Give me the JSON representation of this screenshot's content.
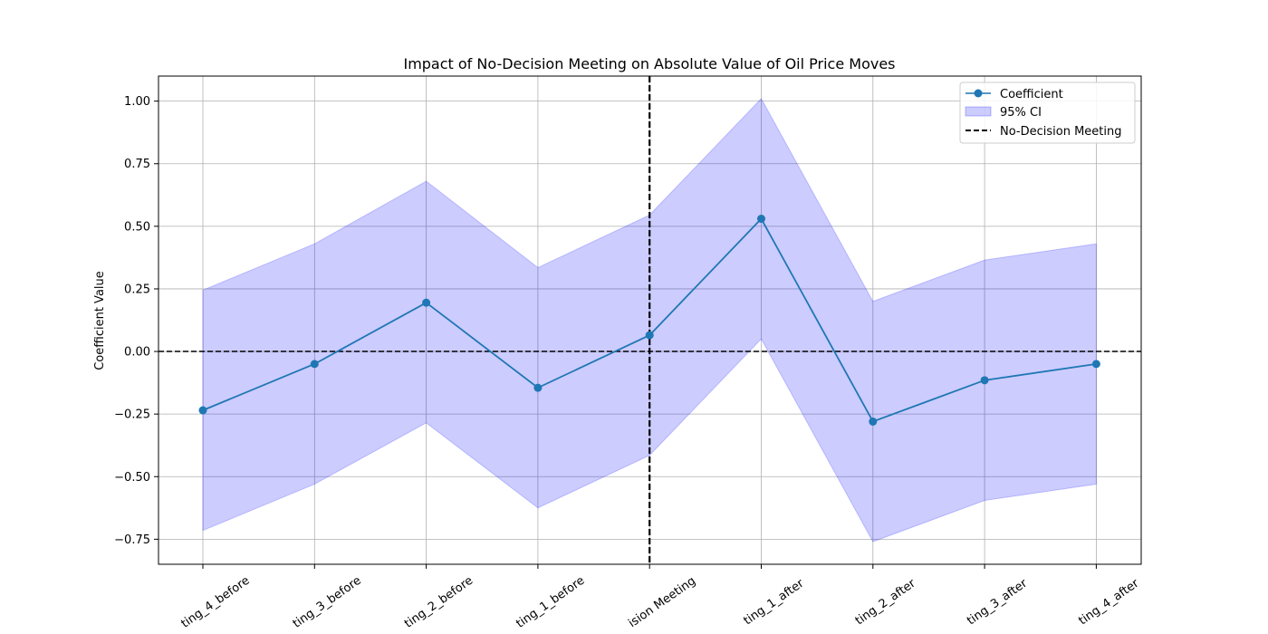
{
  "chart_data": {
    "type": "line",
    "title": "Impact of No-Decision Meeting on Absolute Value of Oil Price Moves",
    "xlabel": "",
    "ylabel": "Coefficient Value",
    "categories": [
      "ting_4_before",
      "ting_3_before",
      "ting_2_before",
      "ting_1_before",
      "ision Meeting",
      "ting_1_after",
      "ting_2_after",
      "ting_3_after",
      "ting_4_after"
    ],
    "ylim": [
      -0.85,
      1.1
    ],
    "yticks": [
      "−0.75",
      "−0.50",
      "−0.25",
      "0.00",
      "0.25",
      "0.50",
      "0.75",
      "1.00"
    ],
    "ytick_values": [
      -0.75,
      -0.5,
      -0.25,
      0.0,
      0.25,
      0.5,
      0.75,
      1.0
    ],
    "grid": true,
    "series": [
      {
        "name": "Coefficient",
        "values": [
          -0.235,
          -0.05,
          0.195,
          -0.145,
          0.065,
          0.53,
          -0.28,
          -0.115,
          -0.05
        ],
        "color": "#1f77b4"
      }
    ],
    "ci": {
      "name": "95% CI",
      "lower": [
        -0.715,
        -0.53,
        -0.285,
        -0.625,
        -0.415,
        0.05,
        -0.76,
        -0.595,
        -0.53
      ],
      "upper": [
        0.245,
        0.43,
        0.68,
        0.335,
        0.545,
        1.01,
        0.2,
        0.365,
        0.43
      ],
      "color": "#0000ff"
    },
    "reference_lines": {
      "horizontal_zero": 0.0,
      "vertical_category_index": 4,
      "vertical_label": "No-Decision Meeting"
    },
    "legend": {
      "placement": "top-right",
      "entries": [
        "Coefficient",
        "95% CI",
        "No-Decision Meeting"
      ]
    }
  }
}
